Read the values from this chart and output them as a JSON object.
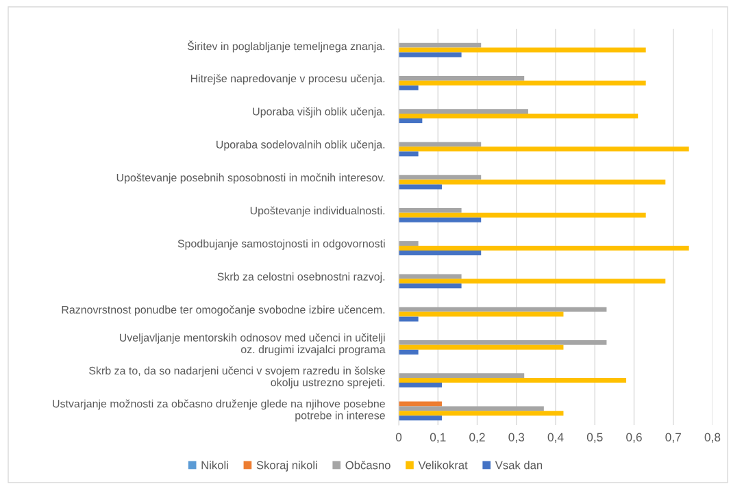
{
  "chart_data": {
    "type": "bar",
    "orientation": "horizontal",
    "categories": [
      "Širitev in poglabljanje temeljnega znanja.",
      "Hitrejše napredovanje v procesu učenja.",
      "Uporaba višjih oblik učenja.",
      "Uporaba sodelovalnih oblik učenja.",
      "Upoštevanje posebnih sposobnosti in močnih interesov.",
      "Upoštevanje individualnosti.",
      "Spodbujanje samostojnosti in odgovornosti",
      "Skrb za celostni osebnostni razvoj.",
      "Raznovrstnost ponudbe ter omogočanje svobodne izbire učencem.",
      "Uveljavljanje mentorskih odnosov med učenci in učitelji\noz. drugimi izvajalci programa",
      "Skrb za to, da so nadarjeni učenci v svojem razredu in šolske\nokolju ustrezno sprejeti.",
      "Ustvarjanje možnosti za občasno druženje glede na njihove posebne\npotrebe in interese"
    ],
    "series": [
      {
        "name": "Nikoli",
        "color": "#5b9bd5",
        "values": [
          null,
          null,
          null,
          null,
          null,
          null,
          null,
          null,
          null,
          null,
          null,
          null
        ]
      },
      {
        "name": "Skoraj nikoli",
        "color": "#ed7d31",
        "values": [
          null,
          null,
          null,
          null,
          null,
          null,
          null,
          null,
          null,
          null,
          null,
          0.11
        ]
      },
      {
        "name": "Občasno",
        "color": "#a5a5a5",
        "values": [
          0.21,
          0.32,
          0.33,
          0.21,
          0.21,
          0.16,
          0.05,
          0.16,
          0.53,
          0.53,
          0.32,
          0.37
        ]
      },
      {
        "name": "Velikokrat",
        "color": "#ffc000",
        "values": [
          0.63,
          0.63,
          0.61,
          0.74,
          0.68,
          0.63,
          0.74,
          0.68,
          0.42,
          0.42,
          0.58,
          0.42
        ]
      },
      {
        "name": "Vsak dan",
        "color": "#4472c4",
        "values": [
          0.16,
          0.05,
          0.06,
          0.05,
          0.11,
          0.21,
          0.21,
          0.16,
          0.05,
          0.05,
          0.11,
          0.11
        ]
      }
    ],
    "xlim": [
      0,
      0.8
    ],
    "xticks": [
      0,
      {
        "value": 0.1,
        "label": "0,1"
      },
      {
        "value": 0.2,
        "label": "0,2"
      },
      {
        "value": 0.3,
        "label": "0,3"
      },
      {
        "value": 0.4,
        "label": "0,4"
      },
      {
        "value": 0.5,
        "label": "0,5"
      },
      {
        "value": 0.6,
        "label": "0,6"
      },
      {
        "value": 0.7,
        "label": "0,7"
      },
      {
        "value": 0.8,
        "label": "0,8"
      }
    ],
    "grid": "x",
    "legend": "bottom"
  }
}
